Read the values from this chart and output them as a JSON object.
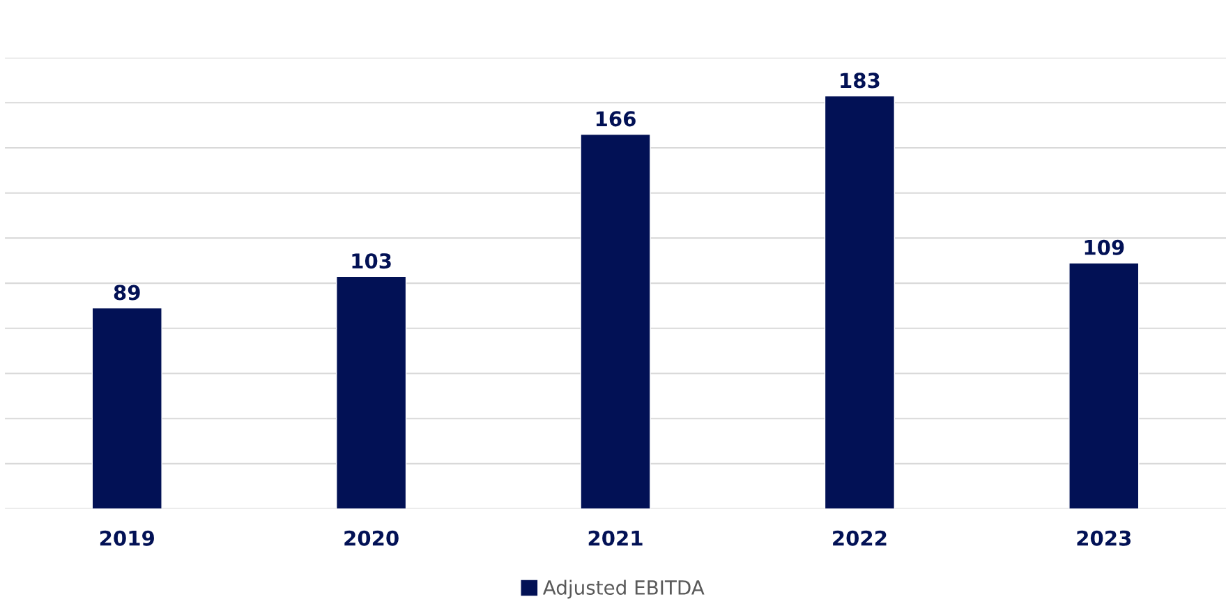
{
  "chart_data": {
    "type": "bar",
    "categories": [
      "2019",
      "2020",
      "2021",
      "2022",
      "2023"
    ],
    "series": [
      {
        "name": "Adjusted EBITDA",
        "color": "#021155",
        "values": [
          89,
          103,
          166,
          183,
          109
        ]
      }
    ],
    "ylim": [
      0,
      200
    ],
    "yticks": [
      {
        "value": 0,
        "label": null
      },
      {
        "value": 20,
        "label": null
      },
      {
        "value": 40,
        "label": null
      },
      {
        "value": 60,
        "label": null
      },
      {
        "value": 80,
        "label": null
      },
      {
        "value": 100,
        "label": null
      },
      {
        "value": 120,
        "label": null
      },
      {
        "value": 140,
        "label": null
      },
      {
        "value": 160,
        "label": null
      },
      {
        "value": 180,
        "label": null
      },
      {
        "value": 200,
        "label": null
      }
    ],
    "tick_labels": "x",
    "grid": "y",
    "legend": "bottom",
    "data_labels": true
  }
}
